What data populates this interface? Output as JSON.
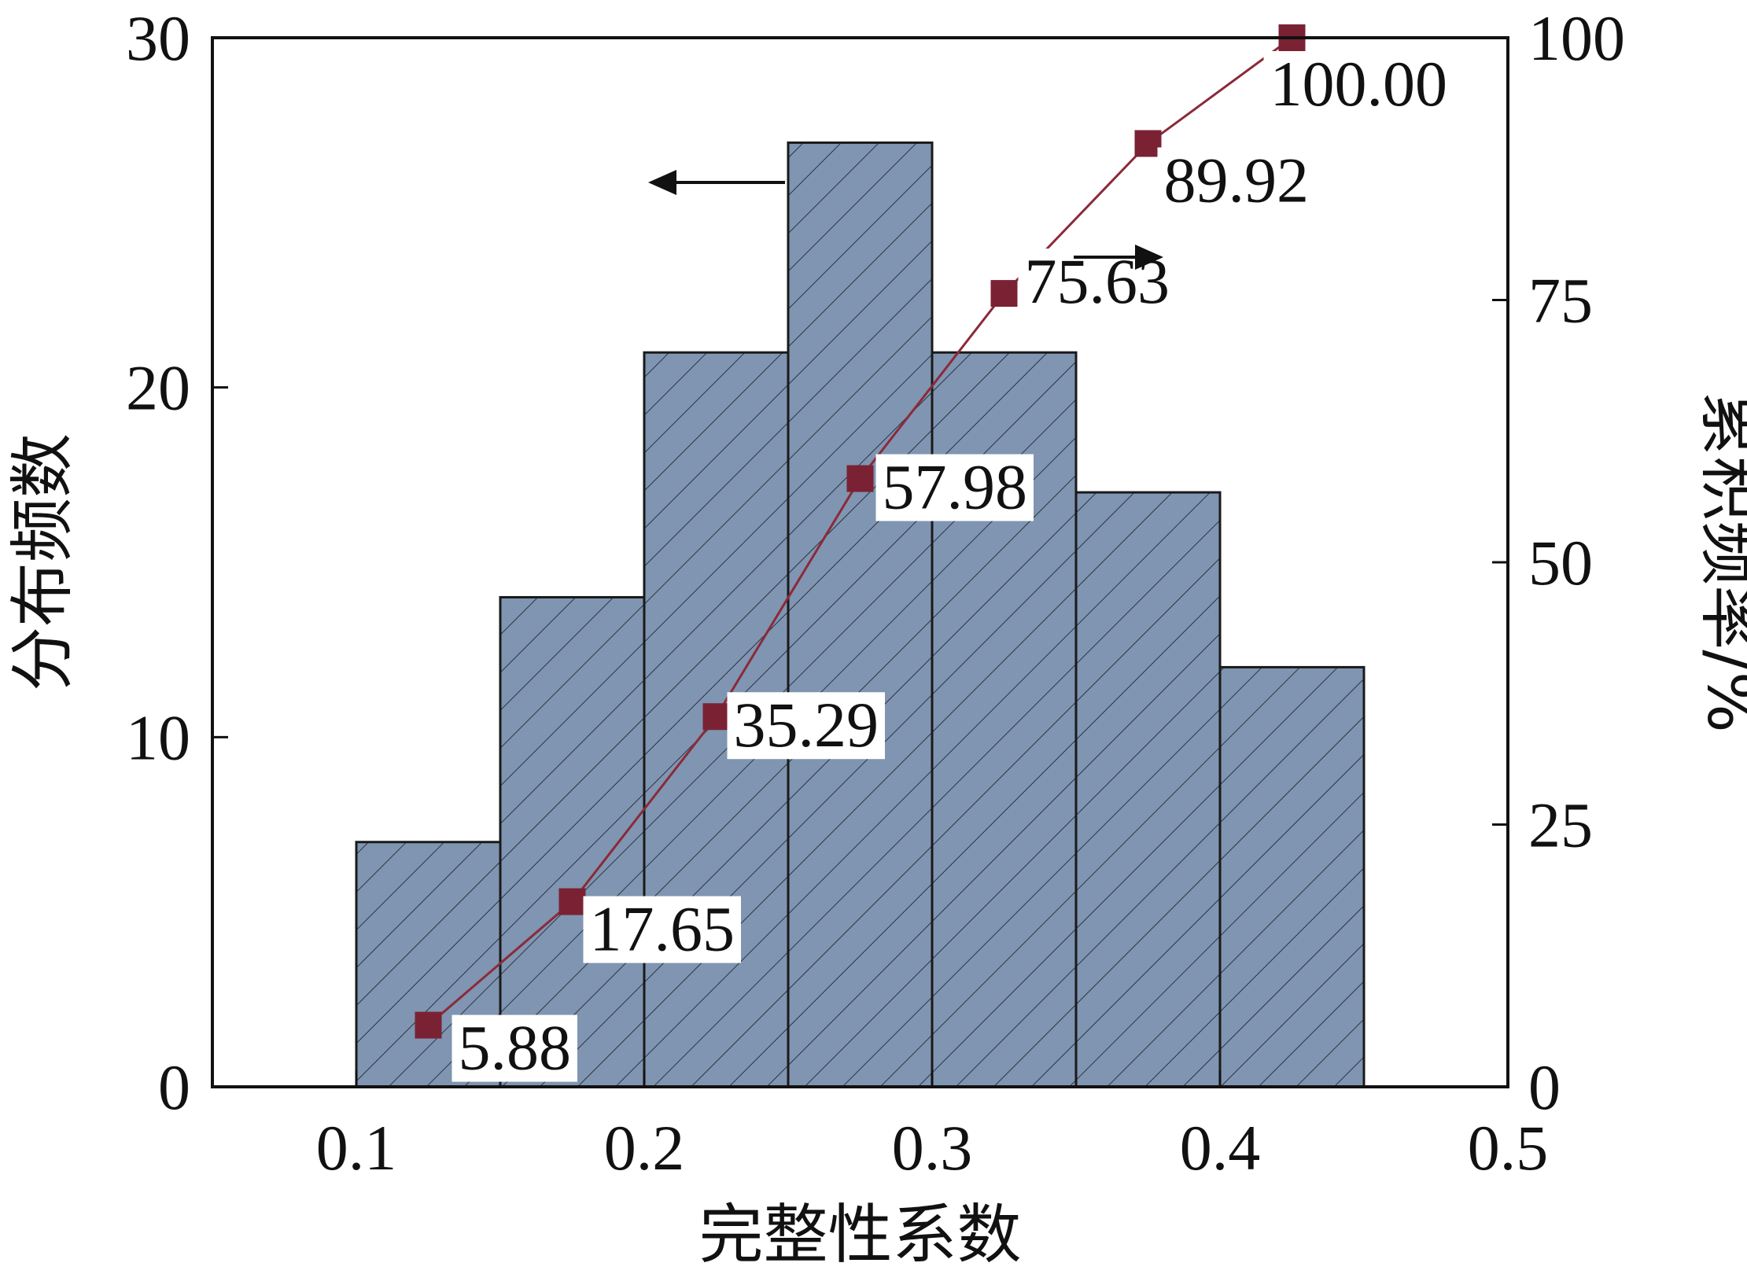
{
  "chart_data": {
    "type": "bar",
    "title": "",
    "xlabel": "完整性系数",
    "ylabel_left": "分布频数",
    "ylabel_right": "累积频率/%",
    "xlim": [
      0.05,
      0.5
    ],
    "ylim_left": [
      0,
      30
    ],
    "ylim_right": [
      0,
      100
    ],
    "x_ticks": [
      "0.1",
      "0.2",
      "0.3",
      "0.4",
      "0.5"
    ],
    "y_left_ticks": [
      "0",
      "10",
      "20",
      "30"
    ],
    "y_right_ticks": [
      "0",
      "25",
      "50",
      "75",
      "100"
    ],
    "bins": [
      {
        "start": 0.1,
        "end": 0.15,
        "value": 7
      },
      {
        "start": 0.15,
        "end": 0.2,
        "value": 14
      },
      {
        "start": 0.2,
        "end": 0.25,
        "value": 21
      },
      {
        "start": 0.25,
        "end": 0.3,
        "value": 27
      },
      {
        "start": 0.3,
        "end": 0.35,
        "value": 21
      },
      {
        "start": 0.35,
        "end": 0.4,
        "value": 17
      },
      {
        "start": 0.4,
        "end": 0.45,
        "value": 12
      }
    ],
    "cumulative": {
      "x": [
        0.125,
        0.175,
        0.225,
        0.275,
        0.325,
        0.375,
        0.425
      ],
      "values": [
        5.88,
        17.65,
        35.29,
        57.98,
        75.63,
        89.92,
        100.0
      ],
      "labels": [
        "5.88",
        "17.65",
        "35.29",
        "57.98",
        "75.63",
        "89.92",
        "100.00"
      ]
    },
    "colors": {
      "bar_fill": "#7f95b1",
      "bar_edge": "#1a1a1a",
      "hatch": "#2b3440",
      "line": "#8b2a3a",
      "marker": "#7a2233"
    },
    "grid": false,
    "legend": "none",
    "annotations": [
      "arrow pointing left toward bars (left axis)",
      "arrow pointing right toward line (right axis)"
    ]
  }
}
